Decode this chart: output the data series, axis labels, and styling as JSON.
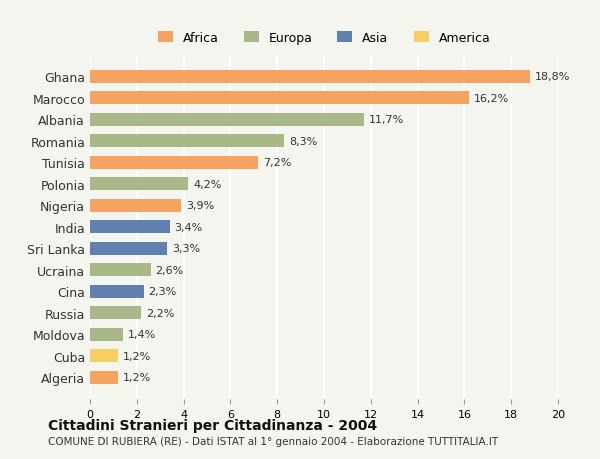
{
  "countries": [
    "Ghana",
    "Marocco",
    "Albania",
    "Romania",
    "Tunisia",
    "Polonia",
    "Nigeria",
    "India",
    "Sri Lanka",
    "Ucraina",
    "Cina",
    "Russia",
    "Moldova",
    "Cuba",
    "Algeria"
  ],
  "values": [
    18.8,
    16.2,
    11.7,
    8.3,
    7.2,
    4.2,
    3.9,
    3.4,
    3.3,
    2.6,
    2.3,
    2.2,
    1.4,
    1.2,
    1.2
  ],
  "labels": [
    "18,8%",
    "16,2%",
    "11,7%",
    "8,3%",
    "7,2%",
    "4,2%",
    "3,9%",
    "3,4%",
    "3,3%",
    "2,6%",
    "2,3%",
    "2,2%",
    "1,4%",
    "1,2%",
    "1,2%"
  ],
  "continents": [
    "Africa",
    "Africa",
    "Europa",
    "Europa",
    "Africa",
    "Europa",
    "Africa",
    "Asia",
    "Asia",
    "Europa",
    "Asia",
    "Europa",
    "Europa",
    "America",
    "Africa"
  ],
  "colors": {
    "Africa": "#F4A460",
    "Europa": "#A8B888",
    "Asia": "#6080B0",
    "America": "#F5D060"
  },
  "xlim": [
    0,
    20
  ],
  "xticks": [
    0,
    2,
    4,
    6,
    8,
    10,
    12,
    14,
    16,
    18,
    20
  ],
  "title": "Cittadini Stranieri per Cittadinanza - 2004",
  "subtitle": "COMUNE DI RUBIERA (RE) - Dati ISTAT al 1° gennaio 2004 - Elaborazione TUTTITALIA.IT",
  "background_color": "#f5f5f0",
  "grid_color": "#ffffff",
  "legend_order": [
    "Africa",
    "Europa",
    "Asia",
    "America"
  ]
}
